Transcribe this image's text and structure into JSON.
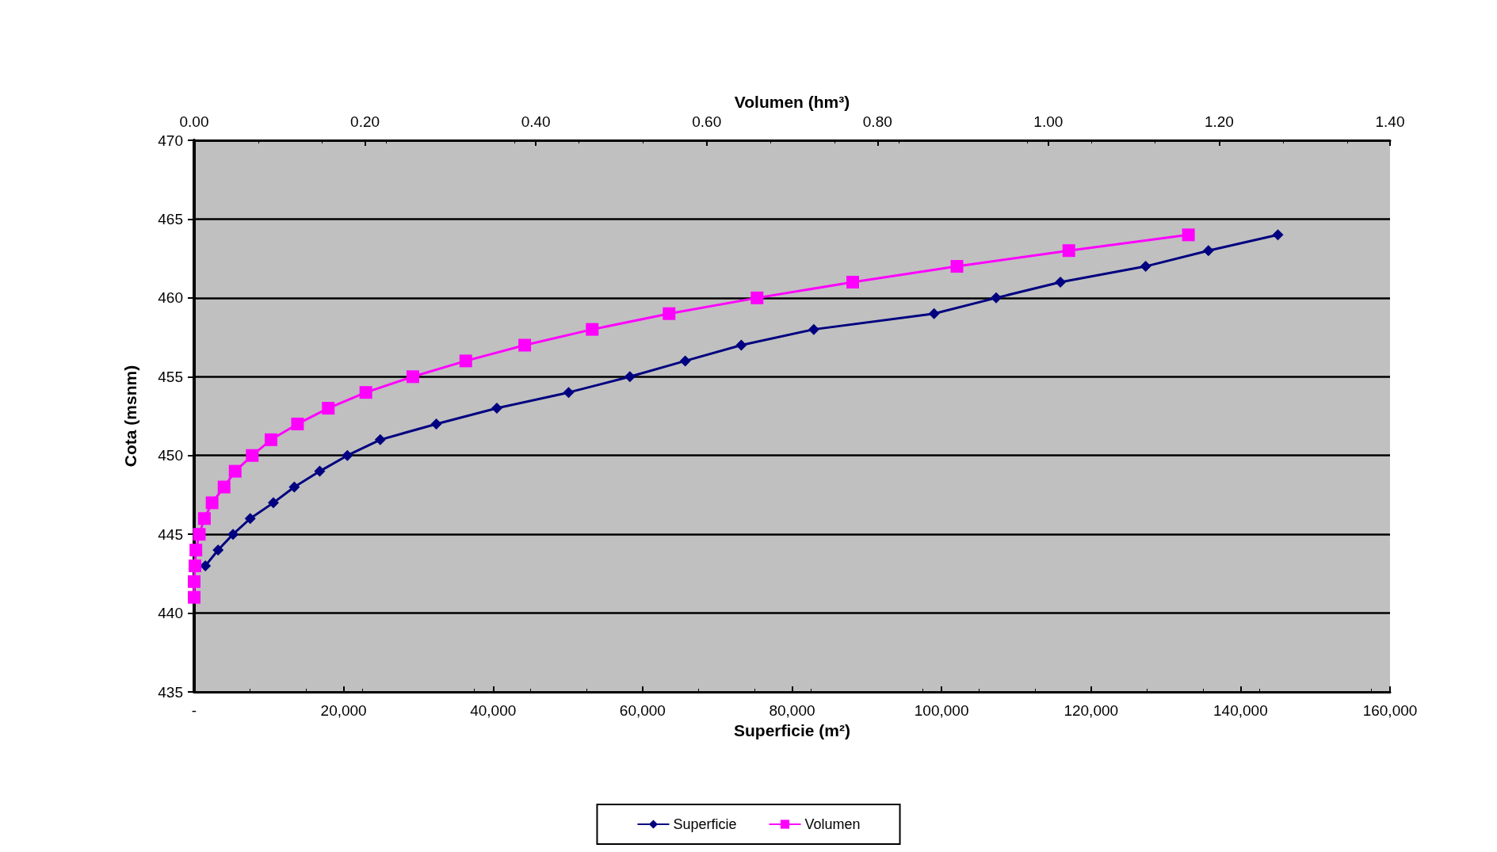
{
  "chart_data": {
    "type": "line",
    "xlabel": "Superficie (m²)",
    "x2label": "Volumen (hm³)",
    "ylabel": "Cota (msnm)",
    "xlim": [
      0,
      160000
    ],
    "xticks": [
      {
        "value": 0,
        "label": "-"
      },
      {
        "value": 20000,
        "label": "20,000"
      },
      {
        "value": 40000,
        "label": "40,000"
      },
      {
        "value": 60000,
        "label": "60,000"
      },
      {
        "value": 80000,
        "label": "80,000"
      },
      {
        "value": 100000,
        "label": "100,000"
      },
      {
        "value": 120000,
        "label": "120,000"
      },
      {
        "value": 140000,
        "label": "140,000"
      },
      {
        "value": 160000,
        "label": "160,000"
      }
    ],
    "x2lim": [
      0,
      1.4
    ],
    "x2ticks": [
      {
        "value": 0,
        "label": "0.00"
      },
      {
        "value": 0.2,
        "label": "0.20"
      },
      {
        "value": 0.4,
        "label": "0.40"
      },
      {
        "value": 0.6,
        "label": "0.60"
      },
      {
        "value": 0.8,
        "label": "0.80"
      },
      {
        "value": 1.0,
        "label": "1.00"
      },
      {
        "value": 1.2,
        "label": "1.20"
      },
      {
        "value": 1.4,
        "label": "1.40"
      }
    ],
    "ylim": [
      435,
      470
    ],
    "yticks": [
      435,
      440,
      445,
      450,
      455,
      460,
      465,
      470
    ],
    "grid": "y",
    "legend": "bottom",
    "line_style": "solid",
    "series": [
      {
        "name": "Superficie",
        "color": "#000080",
        "marker": "diamond",
        "x": [
          1500,
          3200,
          5200,
          7500,
          10600,
          13400,
          16800,
          20500,
          24900,
          32400,
          40500,
          50100,
          58300,
          65700,
          73200,
          82900,
          99000,
          107300,
          115900,
          127300,
          135700,
          145000
        ],
        "values": [
          443,
          444,
          445,
          446,
          447,
          448,
          449,
          450,
          451,
          452,
          453,
          454,
          455,
          456,
          457,
          458,
          459,
          460,
          461,
          462,
          463,
          464
        ]
      },
      {
        "name": "Volumen",
        "color": "#ff00ff",
        "marker": "square",
        "axis": "x2",
        "x": [
          0,
          0,
          0.001,
          0.002,
          0.006,
          0.012,
          0.021,
          0.035,
          0.048,
          0.068,
          0.09,
          0.121,
          0.157,
          0.201,
          0.256,
          0.318,
          0.387,
          0.466,
          0.556,
          0.659,
          0.771,
          0.893,
          1.024,
          1.164
        ],
        "values": [
          441,
          442,
          443,
          444,
          445,
          446,
          447,
          448,
          449,
          450,
          451,
          452,
          453,
          454,
          455,
          456,
          457,
          458,
          459,
          460,
          461,
          462,
          463,
          464
        ]
      }
    ]
  }
}
